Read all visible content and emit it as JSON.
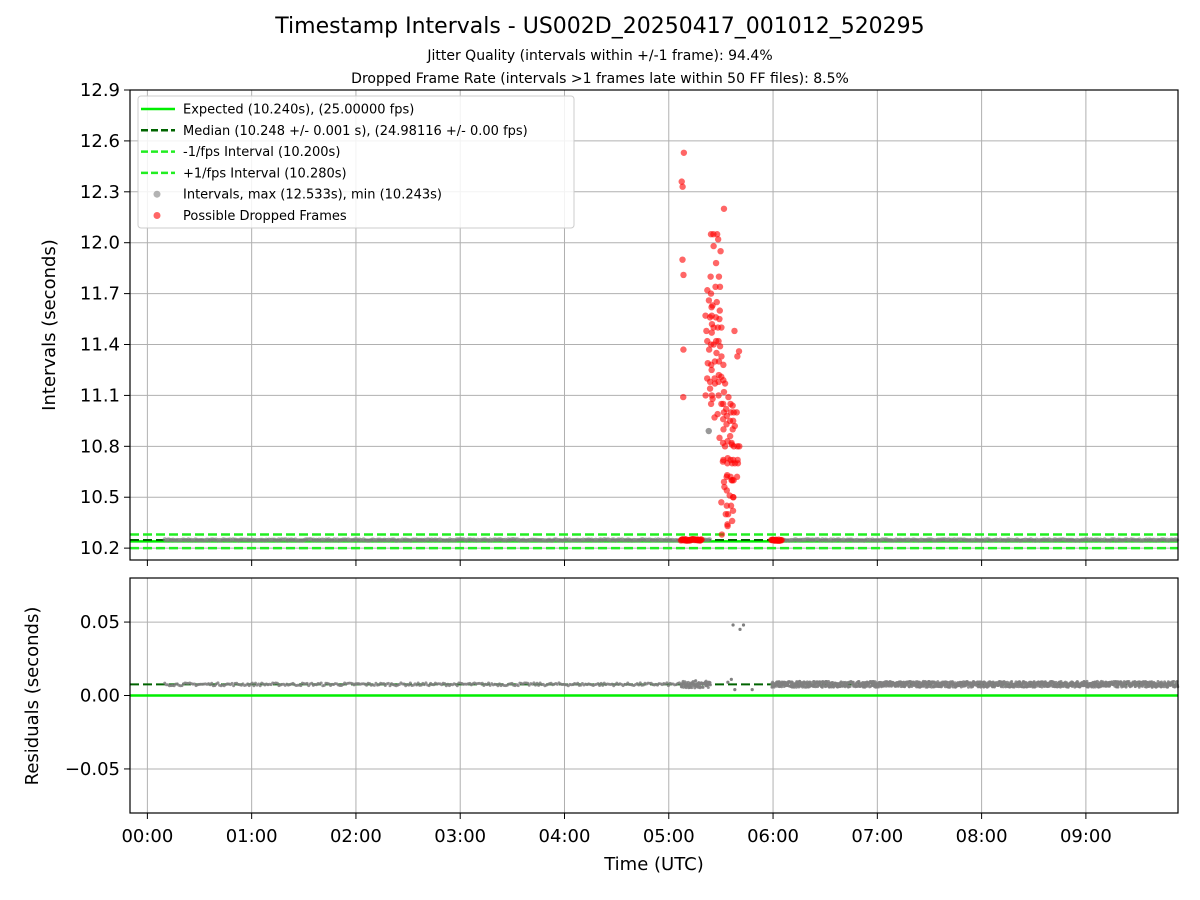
{
  "figure": {
    "title": "Timestamp Intervals - US002D_20250417_001012_520295",
    "subtitle_1": "Jitter Quality (intervals within +/-1 frame): 94.4%",
    "subtitle_2": "Dropped Frame Rate (intervals >1 frames late within 50 FF files): 8.5%"
  },
  "colors": {
    "expected": "#00ee00",
    "median": "#006400",
    "interval_band": "#22ee22",
    "intervals": "#808080",
    "dropped": "#ff0000",
    "grid": "#b0b0b0"
  },
  "chart_data": [
    {
      "type": "scatter",
      "panel": "intervals",
      "ylabel": "Intervals (seconds)",
      "ylim": [
        10.13,
        12.9
      ],
      "yticks": [
        "10.2",
        "10.5",
        "10.8",
        "11.1",
        "11.4",
        "11.7",
        "12.0",
        "12.3",
        "12.6",
        "12.9"
      ],
      "grid": true,
      "legend_position": "upper-left",
      "legend": [
        {
          "label": "Expected (10.240s), (25.00000 fps)",
          "style": "solid-line",
          "color": "#00ee00"
        },
        {
          "label": "Median (10.248 +/- 0.001 s), (24.98116 +/- 0.00 fps)",
          "style": "dashed-line",
          "color": "#006400"
        },
        {
          "label": "-1/fps Interval (10.200s)",
          "style": "dashed-line",
          "color": "#22ee22"
        },
        {
          "label": "+1/fps Interval (10.280s)",
          "style": "dashed-line",
          "color": "#22ee22"
        },
        {
          "label": "Intervals, max (12.533s), min (10.243s)",
          "style": "dot",
          "color": "#808080"
        },
        {
          "label": "Possible Dropped Frames",
          "style": "dot",
          "color": "#ff0000"
        }
      ],
      "reference_lines": {
        "expected": 10.24,
        "median": 10.248,
        "minus_1_fps": 10.2,
        "plus_1_fps": 10.28
      },
      "series": [
        {
          "name": "Intervals, max (12.533s), min (10.243s)",
          "color": "#808080",
          "x_range": [
            "00:10",
            "09:53"
          ],
          "y_typical": 10.248,
          "gap": [
            "05:24",
            "05:59"
          ],
          "extra_points": [
            [
              "05:23",
              10.89
            ]
          ]
        },
        {
          "name": "Possible Dropped Frames",
          "color": "#ff0000",
          "baseline_clusters": [
            [
              "05:07",
              "05:19",
              10.248
            ],
            [
              "05:59",
              "06:05",
              10.248
            ]
          ],
          "points": [
            [
              "05:08",
              12.53
            ],
            [
              "05:08",
              12.36
            ],
            [
              "05:08",
              12.33
            ],
            [
              "05:08",
              11.9
            ],
            [
              "05:08",
              11.81
            ],
            [
              "05:08",
              11.37
            ],
            [
              "05:08",
              11.09
            ],
            [
              "05:22",
              11.72
            ],
            [
              "05:22",
              11.57
            ],
            [
              "05:22",
              11.48
            ],
            [
              "05:22",
              11.29
            ],
            [
              "05:22",
              11.2
            ],
            [
              "05:22",
              11.1
            ],
            [
              "05:23",
              11.66
            ],
            [
              "05:23",
              11.56
            ],
            [
              "05:23",
              11.42
            ],
            [
              "05:23",
              11.18
            ],
            [
              "05:24",
              12.05
            ],
            [
              "05:24",
              11.8
            ],
            [
              "05:24",
              11.62
            ],
            [
              "05:24",
              11.57
            ],
            [
              "05:24",
              11.47
            ],
            [
              "05:24",
              11.37
            ],
            [
              "05:24",
              11.28
            ],
            [
              "05:24",
              11.14
            ],
            [
              "05:24",
              11.05
            ],
            [
              "05:25",
              11.7
            ],
            [
              "05:25",
              11.52
            ],
            [
              "05:25",
              11.4
            ],
            [
              "05:25",
              11.25
            ],
            [
              "05:25",
              11.1
            ],
            [
              "05:26",
              12.05
            ],
            [
              "05:26",
              11.98
            ],
            [
              "05:26",
              11.63
            ],
            [
              "05:26",
              11.5
            ],
            [
              "05:26",
              11.4
            ],
            [
              "05:26",
              11.3
            ],
            [
              "05:26",
              11.17
            ],
            [
              "05:26",
              11.08
            ],
            [
              "05:27",
              11.74
            ],
            [
              "05:27",
              11.56
            ],
            [
              "05:27",
              11.42
            ],
            [
              "05:27",
              11.2
            ],
            [
              "05:27",
              10.97
            ],
            [
              "05:28",
              12.05
            ],
            [
              "05:28",
              11.88
            ],
            [
              "05:28",
              11.65
            ],
            [
              "05:28",
              11.5
            ],
            [
              "05:28",
              11.35
            ],
            [
              "05:28",
              11.22
            ],
            [
              "05:28",
              11.1
            ],
            [
              "05:28",
              10.99
            ],
            [
              "05:29",
              12.02
            ],
            [
              "05:29",
              11.8
            ],
            [
              "05:29",
              11.6
            ],
            [
              "05:29",
              11.42
            ],
            [
              "05:29",
              11.3
            ],
            [
              "05:29",
              11.18
            ],
            [
              "05:30",
              11.95
            ],
            [
              "05:30",
              11.74
            ],
            [
              "05:30",
              11.55
            ],
            [
              "05:30",
              11.39
            ],
            [
              "05:30",
              11.21
            ],
            [
              "05:30",
              11.05
            ],
            [
              "05:30",
              10.85
            ],
            [
              "05:31",
              12.2
            ],
            [
              "05:31",
              11.5
            ],
            [
              "05:31",
              11.33
            ],
            [
              "05:31",
              11.19
            ],
            [
              "05:31",
              11.05
            ],
            [
              "05:31",
              10.96
            ],
            [
              "05:31",
              10.71
            ],
            [
              "05:31",
              10.59
            ],
            [
              "05:31",
              10.47
            ],
            [
              "05:31",
              10.28
            ],
            [
              "05:32",
              11.28
            ],
            [
              "05:32",
              11.12
            ],
            [
              "05:32",
              11.0
            ],
            [
              "05:32",
              10.9
            ],
            [
              "05:32",
              10.82
            ],
            [
              "05:32",
              10.72
            ],
            [
              "05:32",
              10.56
            ],
            [
              "05:32",
              10.4
            ],
            [
              "05:33",
              11.17
            ],
            [
              "05:33",
              11.02
            ],
            [
              "05:33",
              10.93
            ],
            [
              "05:33",
              10.8
            ],
            [
              "05:33",
              10.7
            ],
            [
              "05:33",
              10.62
            ],
            [
              "05:33",
              10.45
            ],
            [
              "05:33",
              10.34
            ],
            [
              "05:34",
              11.09
            ],
            [
              "05:34",
              10.98
            ],
            [
              "05:34",
              10.83
            ],
            [
              "05:34",
              10.73
            ],
            [
              "05:34",
              10.63
            ],
            [
              "05:34",
              10.54
            ],
            [
              "05:34",
              10.33
            ],
            [
              "05:35",
              11.05
            ],
            [
              "05:35",
              10.95
            ],
            [
              "05:35",
              10.86
            ],
            [
              "05:35",
              10.72
            ],
            [
              "05:35",
              10.62
            ],
            [
              "05:35",
              10.51
            ],
            [
              "05:35",
              10.4
            ],
            [
              "05:36",
              11.0
            ],
            [
              "05:36",
              10.9
            ],
            [
              "05:36",
              10.81
            ],
            [
              "05:36",
              10.7
            ],
            [
              "05:36",
              10.6
            ],
            [
              "05:36",
              10.45
            ],
            [
              "05:36",
              10.36
            ],
            [
              "05:37",
              11.04
            ],
            [
              "05:37",
              10.95
            ],
            [
              "05:37",
              10.82
            ],
            [
              "05:37",
              10.72
            ],
            [
              "05:37",
              10.6
            ],
            [
              "05:37",
              10.5
            ],
            [
              "05:37",
              10.42
            ],
            [
              "05:38",
              11.48
            ],
            [
              "05:38",
              11.0
            ],
            [
              "05:38",
              10.92
            ],
            [
              "05:38",
              10.8
            ],
            [
              "05:38",
              10.7
            ],
            [
              "05:38",
              10.6
            ],
            [
              "05:38",
              10.5
            ],
            [
              "05:39",
              11.33
            ],
            [
              "05:39",
              11.0
            ],
            [
              "05:39",
              10.8
            ],
            [
              "05:39",
              10.72
            ],
            [
              "05:39",
              10.62
            ],
            [
              "05:40",
              11.36
            ],
            [
              "05:40",
              10.8
            ],
            [
              "05:40",
              10.7
            ]
          ]
        }
      ]
    },
    {
      "type": "scatter",
      "panel": "residuals",
      "xlabel": "Time (UTC)",
      "ylabel": "Residuals (seconds)",
      "ylim": [
        -0.08,
        0.08
      ],
      "yticks": [
        "−0.05",
        "0.00",
        "0.05"
      ],
      "xticks": [
        "00:00",
        "01:00",
        "02:00",
        "03:00",
        "04:00",
        "05:00",
        "06:00",
        "07:00",
        "08:00",
        "09:00"
      ],
      "xlim": [
        "-00:10",
        "09:53"
      ],
      "grid": true,
      "reference_lines": {
        "zero": 0.0,
        "median": 0.0076
      },
      "series": [
        {
          "name": "Residuals",
          "color": "#808080",
          "x_range": [
            "00:10",
            "09:53"
          ],
          "y_typical": 0.0076,
          "dense_from": "05:59",
          "extra_points": [
            [
              "05:37",
              0.048
            ],
            [
              "05:41",
              0.045
            ],
            [
              "05:43",
              0.048
            ],
            [
              "05:38",
              0.004
            ],
            [
              "05:48",
              0.004
            ],
            [
              "05:34",
              0.009
            ],
            [
              "05:36",
              0.011
            ]
          ]
        }
      ]
    }
  ]
}
